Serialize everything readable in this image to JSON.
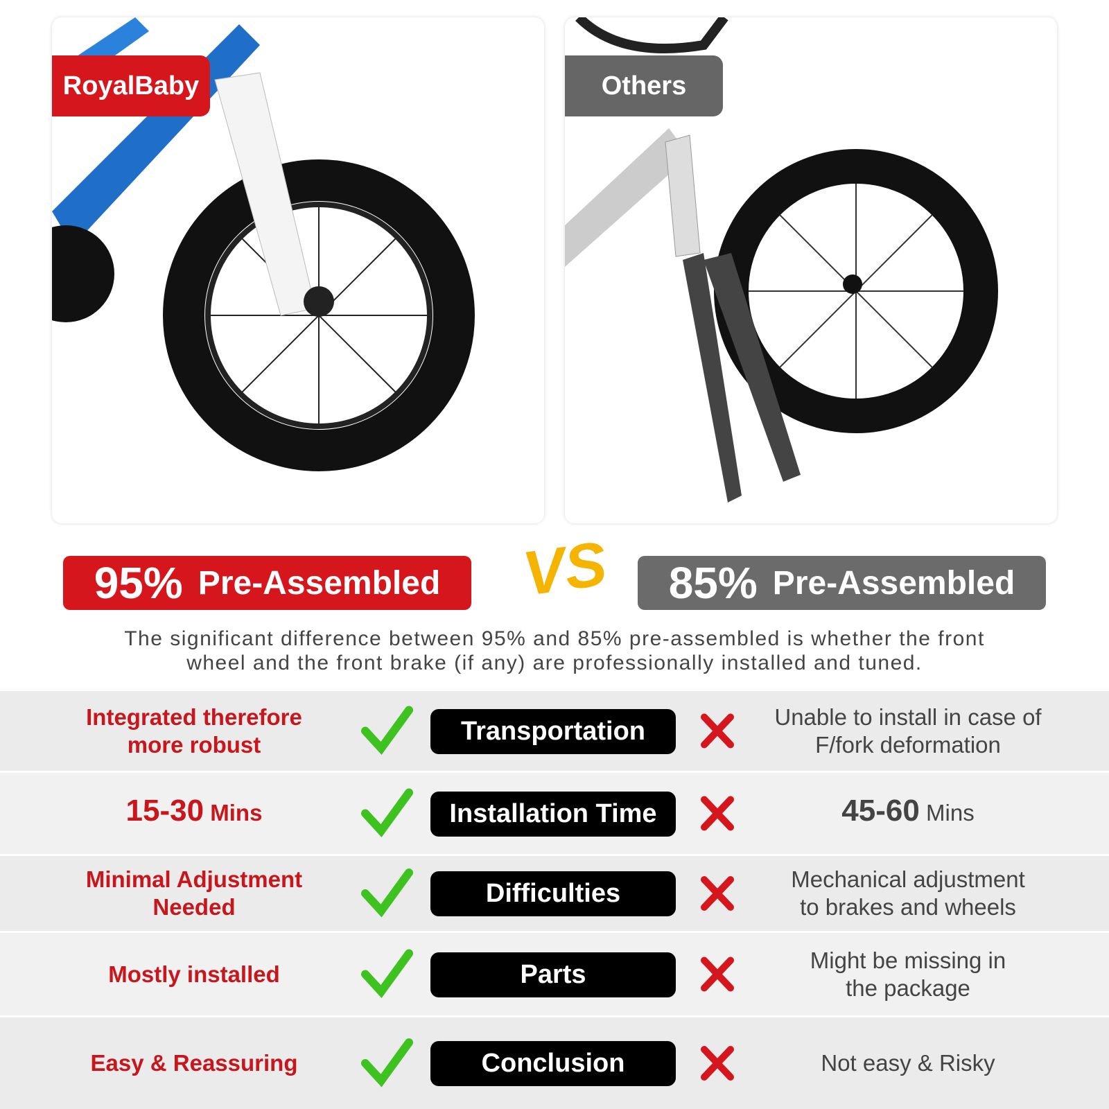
{
  "panels": {
    "left": {
      "label": "RoyalBaby"
    },
    "right": {
      "label": "Others"
    }
  },
  "headline": {
    "left": {
      "percent": "95%",
      "text": "Pre-Assembled"
    },
    "vs": "VS",
    "right": {
      "percent": "85%",
      "text": "Pre-Assembled"
    }
  },
  "description": [
    "The significant difference between 95% and 85% pre-assembled is whether the front",
    "wheel and the front brake (if any) are professionally installed and tuned."
  ],
  "rows": [
    {
      "left": [
        "Integrated therefore",
        "more robust"
      ],
      "center": "Transportation",
      "right": [
        "Unable to install in case of",
        "F/fork deformation"
      ]
    },
    {
      "left_big": "15-30",
      "left_unit": "Mins",
      "center": "Installation Time",
      "right_big": "45-60",
      "right_unit": "Mins"
    },
    {
      "left": [
        "Minimal Adjustment",
        "Needed"
      ],
      "center": "Difficulties",
      "right": [
        "Mechanical adjustment",
        "to brakes and wheels"
      ]
    },
    {
      "left": [
        "Mostly installed"
      ],
      "center": "Parts",
      "right": [
        "Might be missing in",
        "the package"
      ]
    },
    {
      "left": [
        "Easy & Reassuring"
      ],
      "center": "Conclusion",
      "right": [
        "Not easy & Risky"
      ]
    }
  ]
}
